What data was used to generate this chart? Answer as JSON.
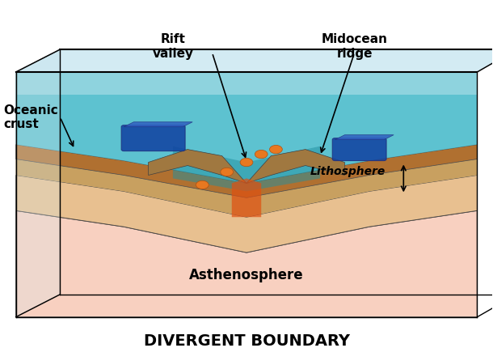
{
  "title": "DIVERGENT BOUNDARY",
  "title_fontsize": 14,
  "title_fontweight": "bold",
  "bg_color": "#ffffff",
  "labels": {
    "oceanic_crust": "Oceanic\ncrust",
    "rift_valley": "Rift\nvalley",
    "midocean_ridge": "Midocean\nridge",
    "lithosphere": "Lithosphere",
    "asthenosphere": "Asthenosphere"
  },
  "colors": {
    "water_top": "#b0e0e8",
    "water_mid": "#40b8c8",
    "water_deep": "#2090a0",
    "crust_top": "#c8a060",
    "crust_brown": "#b07030",
    "lithosphere": "#e8c090",
    "asthenosphere": "#f0b0a0",
    "asthenosphere_light": "#f8d0c0",
    "magma_dot": "#e87820",
    "ridge_blue": "#1040a0",
    "outline": "#404040",
    "water_transparent": "#60c0d080",
    "sky_blue": "#a8d8e8"
  },
  "annotation_arrow_color": "#000000",
  "label_fontsize": 11,
  "label_fontweight": "bold"
}
